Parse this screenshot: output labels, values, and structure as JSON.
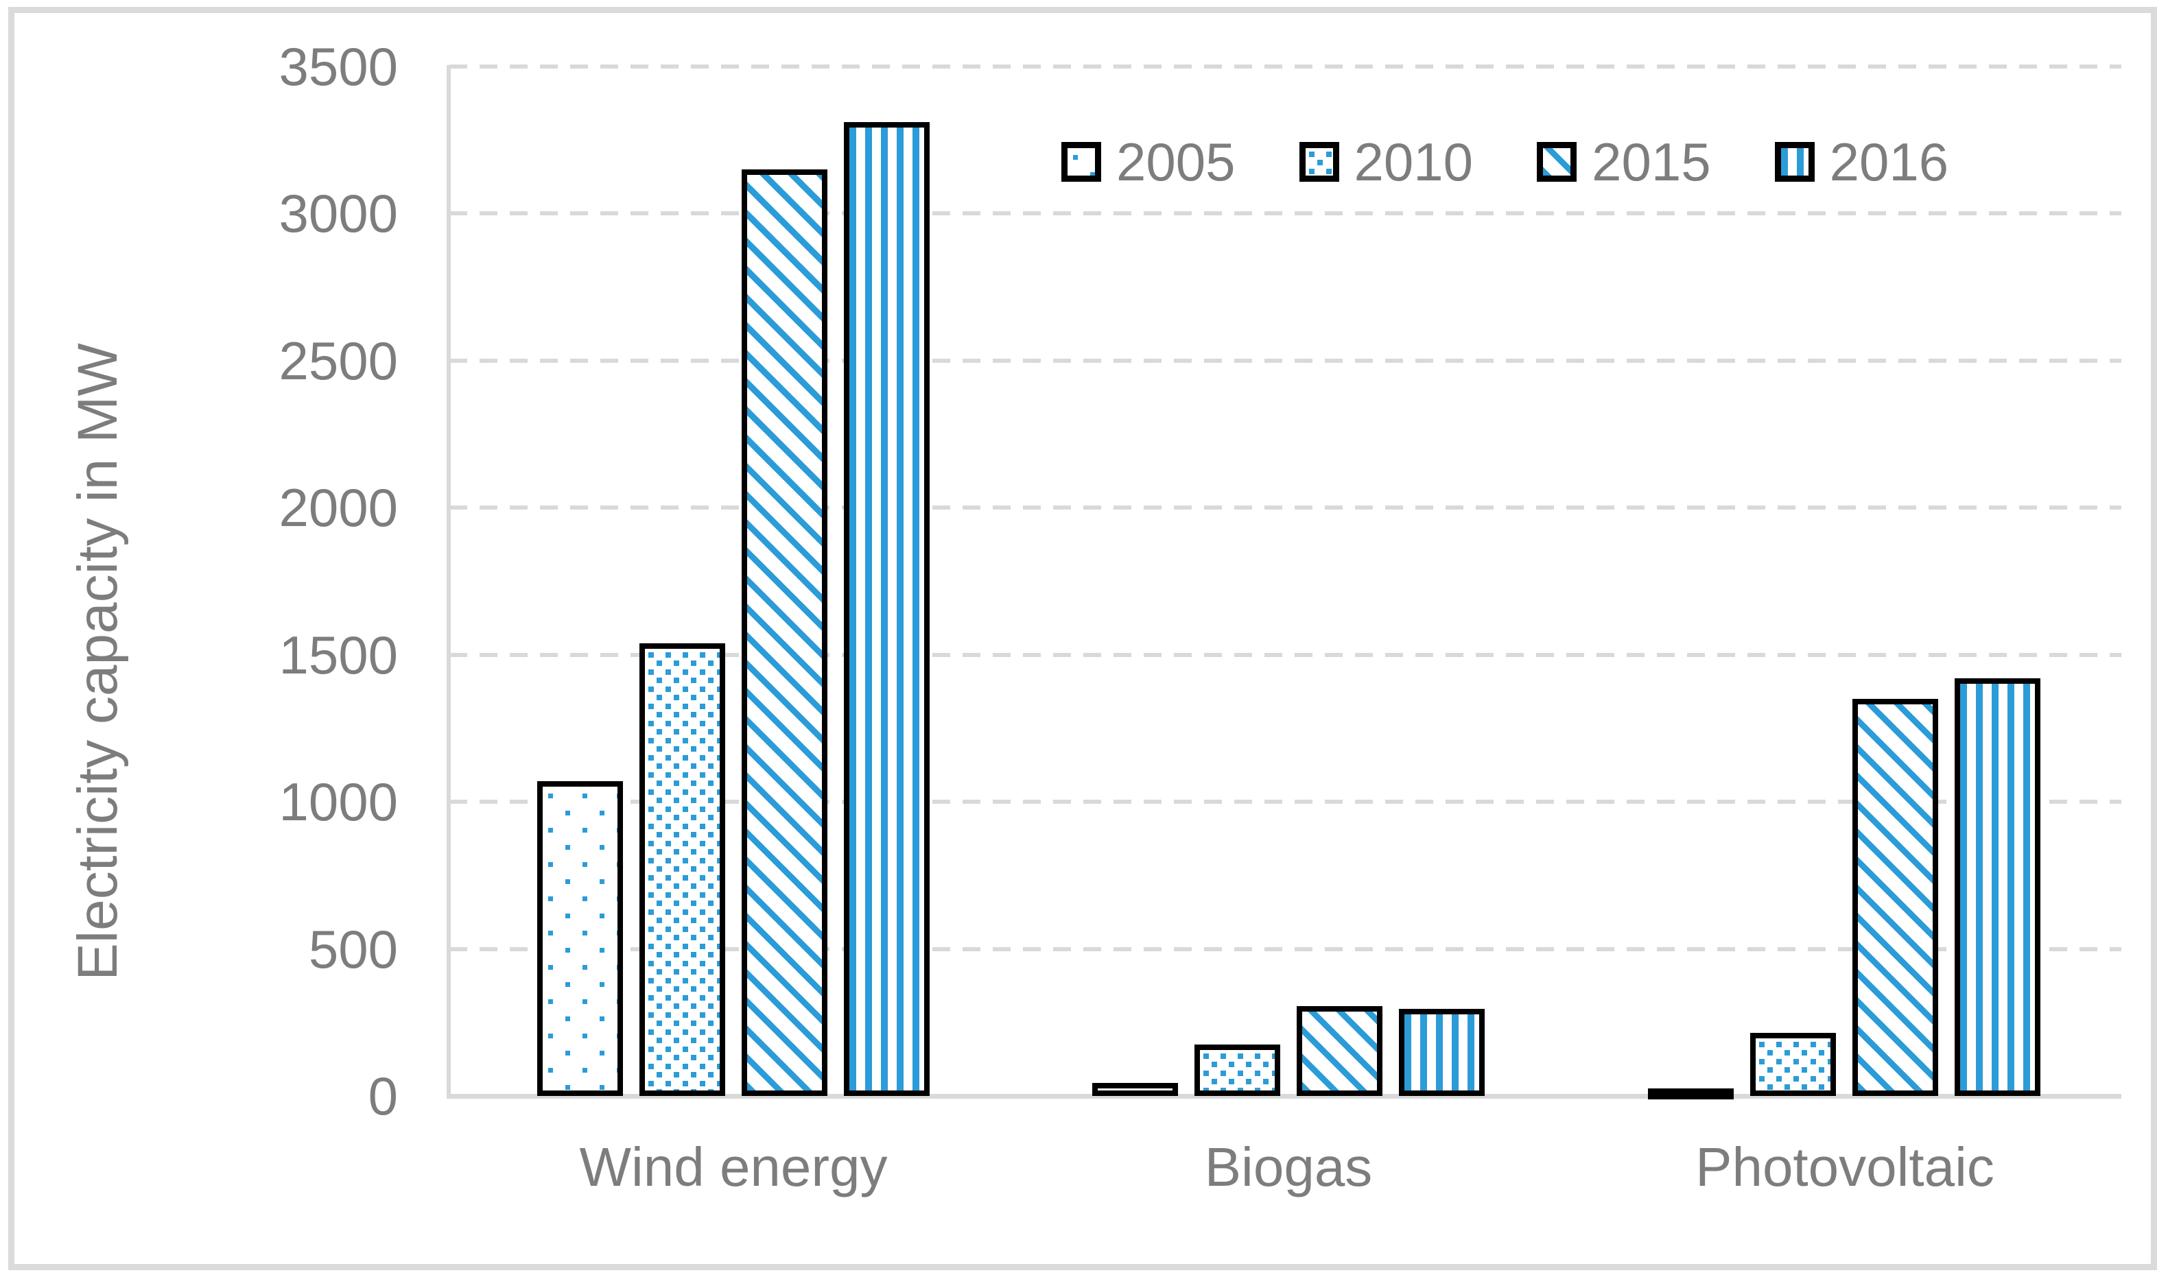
{
  "chart_data": {
    "type": "bar",
    "title": "",
    "xlabel": "",
    "ylabel": "Electricity capacity in MW",
    "categories": [
      "Wind energy",
      "Biogas",
      "Photovoltaic"
    ],
    "series": [
      {
        "name": "2005",
        "pattern": "sparse-dots",
        "values": [
          1070,
          45,
          25
        ]
      },
      {
        "name": "2010",
        "pattern": "dense-dots",
        "values": [
          1540,
          175,
          215
        ]
      },
      {
        "name": "2015",
        "pattern": "diagonal-stripes",
        "values": [
          3150,
          305,
          1350
        ]
      },
      {
        "name": "2016",
        "pattern": "vertical-stripes",
        "values": [
          3310,
          295,
          1420
        ]
      }
    ],
    "ylim": [
      0,
      3500
    ],
    "yticks": [
      0,
      500,
      1000,
      1500,
      2000,
      2500,
      3000,
      3500
    ],
    "grid": "horizontal-dashed",
    "legend": {
      "position": "top-right-inside",
      "entries": [
        "2005",
        "2010",
        "2015",
        "2016"
      ]
    },
    "colors": {
      "pattern_blue": "#2B9CD8",
      "bar_border": "#000000",
      "gridline": "#D9D9D9",
      "axis_line": "#D9D9D9",
      "text": "#7D7D7D",
      "figure_border": "#DBDBDB",
      "background": "#FFFFFF"
    }
  }
}
